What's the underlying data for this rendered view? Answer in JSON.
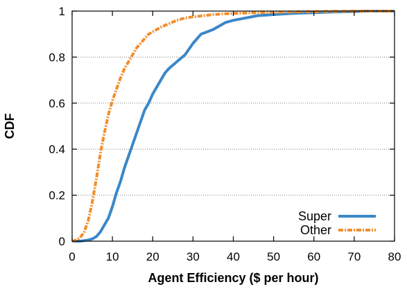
{
  "chart_data": {
    "type": "line",
    "xlabel": "Agent Efficiency ($ per hour)",
    "ylabel": "CDF",
    "xlim": [
      0,
      80
    ],
    "ylim": [
      0,
      1
    ],
    "xticks": [
      0,
      10,
      20,
      30,
      40,
      50,
      60,
      70,
      80
    ],
    "yticks": [
      0,
      0.2,
      0.4,
      0.6,
      0.8,
      1
    ],
    "grid": "horizontal dotted",
    "legend_position": "bottom-right",
    "series": [
      {
        "name": "Super",
        "color": "#3a87c8",
        "style": "solid",
        "points": [
          [
            0,
            0
          ],
          [
            2,
            0.0
          ],
          [
            4,
            0.005
          ],
          [
            5,
            0.01
          ],
          [
            6,
            0.02
          ],
          [
            7,
            0.04
          ],
          [
            8,
            0.07
          ],
          [
            9,
            0.1
          ],
          [
            10,
            0.15
          ],
          [
            11,
            0.21
          ],
          [
            12,
            0.26
          ],
          [
            13,
            0.32
          ],
          [
            14,
            0.37
          ],
          [
            15,
            0.42
          ],
          [
            16,
            0.47
          ],
          [
            17,
            0.52
          ],
          [
            18,
            0.57
          ],
          [
            19,
            0.6
          ],
          [
            20,
            0.64
          ],
          [
            21,
            0.67
          ],
          [
            22,
            0.7
          ],
          [
            23,
            0.73
          ],
          [
            24,
            0.75
          ],
          [
            26,
            0.78
          ],
          [
            28,
            0.81
          ],
          [
            30,
            0.86
          ],
          [
            32,
            0.9
          ],
          [
            35,
            0.92
          ],
          [
            38,
            0.95
          ],
          [
            40,
            0.96
          ],
          [
            43,
            0.97
          ],
          [
            46,
            0.98
          ],
          [
            50,
            0.985
          ],
          [
            55,
            0.99
          ],
          [
            60,
            0.993
          ],
          [
            65,
            0.996
          ],
          [
            70,
            0.998
          ],
          [
            73,
            1.0
          ],
          [
            80,
            1.0
          ]
        ]
      },
      {
        "name": "Other",
        "color": "#f28e2b",
        "style": "dash-dot",
        "points": [
          [
            0,
            0
          ],
          [
            1,
            0.005
          ],
          [
            2,
            0.015
          ],
          [
            3,
            0.04
          ],
          [
            4,
            0.09
          ],
          [
            5,
            0.17
          ],
          [
            6,
            0.27
          ],
          [
            7,
            0.38
          ],
          [
            8,
            0.47
          ],
          [
            9,
            0.55
          ],
          [
            10,
            0.61
          ],
          [
            11,
            0.66
          ],
          [
            12,
            0.71
          ],
          [
            13,
            0.75
          ],
          [
            14,
            0.78
          ],
          [
            15,
            0.81
          ],
          [
            16,
            0.84
          ],
          [
            17,
            0.86
          ],
          [
            18,
            0.88
          ],
          [
            19,
            0.9
          ],
          [
            20,
            0.91
          ],
          [
            22,
            0.93
          ],
          [
            24,
            0.945
          ],
          [
            26,
            0.96
          ],
          [
            28,
            0.97
          ],
          [
            30,
            0.975
          ],
          [
            35,
            0.985
          ],
          [
            40,
            0.99
          ],
          [
            50,
            0.995
          ],
          [
            60,
            0.998
          ],
          [
            70,
            1.0
          ],
          [
            80,
            1.0
          ]
        ]
      }
    ]
  }
}
